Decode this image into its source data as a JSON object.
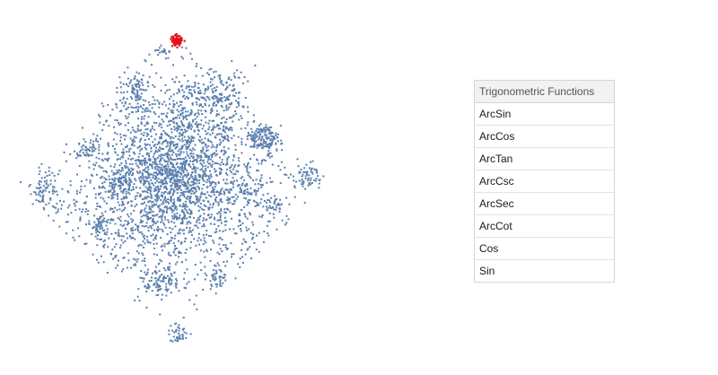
{
  "colors": {
    "point": "#5b7fae",
    "highlight": "#e3121b",
    "panel_border": "#d6d6d6",
    "panel_header_bg": "#f2f2f2"
  },
  "panel": {
    "header": "Trigonometric Functions",
    "items": [
      {
        "label": "ArcSin"
      },
      {
        "label": "ArcCos"
      },
      {
        "label": "ArcTan"
      },
      {
        "label": "ArcCsc"
      },
      {
        "label": "ArcSec"
      },
      {
        "label": "ArcCot"
      },
      {
        "label": "Cos"
      },
      {
        "label": "Sin"
      }
    ]
  }
}
